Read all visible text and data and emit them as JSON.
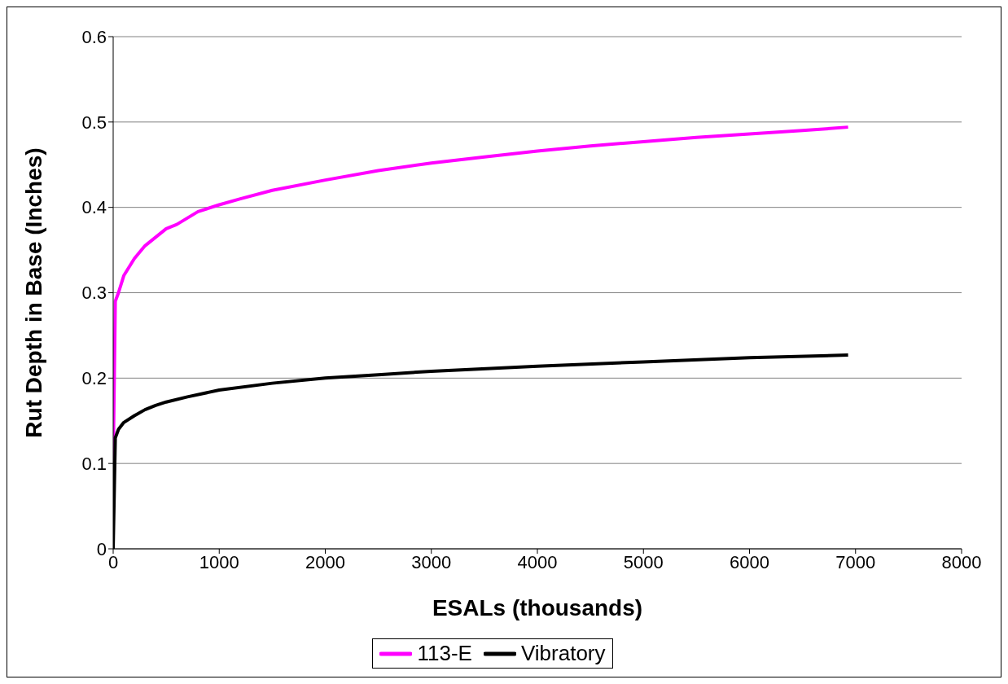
{
  "chart_data": {
    "type": "line",
    "xlabel": "ESALs (thousands)",
    "ylabel": "Rut Depth in Base (Inches)",
    "xlim": [
      0,
      8000
    ],
    "xticks": [
      0,
      1000,
      2000,
      3000,
      4000,
      5000,
      6000,
      7000,
      8000
    ],
    "ylim": [
      0,
      0.6
    ],
    "yticks": [
      0,
      0.1,
      0.2,
      0.3,
      0.4,
      0.5,
      0.6
    ],
    "grid": "y",
    "legend": "bottom",
    "marker": "none",
    "line_style": "solid",
    "series": [
      {
        "name": "113-E",
        "color": "#ff00ff",
        "x": [
          0,
          20,
          50,
          100,
          200,
          300,
          400,
          500,
          600,
          800,
          1000,
          1200,
          1500,
          2000,
          2500,
          3000,
          3500,
          4000,
          4500,
          5000,
          5500,
          6000,
          6500,
          6930
        ],
        "values": [
          0.1,
          0.29,
          0.3,
          0.32,
          0.34,
          0.355,
          0.365,
          0.375,
          0.38,
          0.395,
          0.403,
          0.41,
          0.42,
          0.432,
          0.443,
          0.452,
          0.459,
          0.466,
          0.472,
          0.477,
          0.482,
          0.486,
          0.49,
          0.494
        ]
      },
      {
        "name": "Vibratory",
        "color": "#000000",
        "x": [
          0,
          20,
          50,
          100,
          200,
          300,
          400,
          500,
          700,
          1000,
          1500,
          2000,
          2500,
          3000,
          4000,
          5000,
          6000,
          6930
        ],
        "values": [
          0,
          0.13,
          0.14,
          0.148,
          0.156,
          0.163,
          0.168,
          0.172,
          0.178,
          0.186,
          0.194,
          0.2,
          0.204,
          0.208,
          0.214,
          0.219,
          0.224,
          0.227
        ]
      }
    ]
  }
}
